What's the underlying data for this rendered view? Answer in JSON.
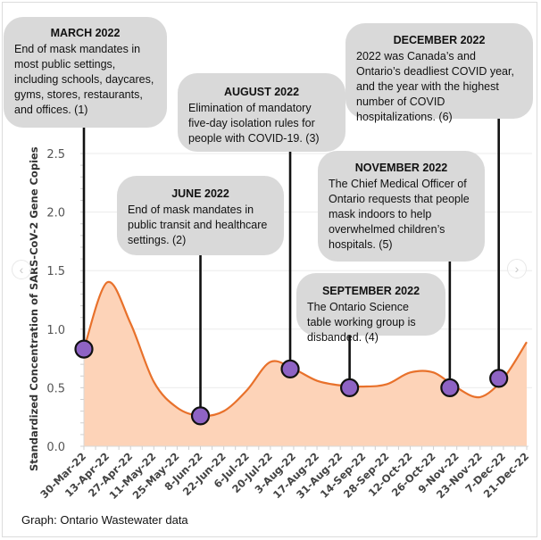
{
  "chart_data": {
    "type": "area",
    "title": "",
    "xlabel": "",
    "ylabel": "Standardized Concentration of SARS-CoV-2 Gene Copies",
    "ylim": [
      0,
      2.5
    ],
    "yticks": [
      "0.0",
      "0.5",
      "1.0",
      "1.5",
      "2.0",
      "2.5"
    ],
    "ytick_values": [
      0,
      0.5,
      1.0,
      1.5,
      2.0,
      2.5
    ],
    "grid": true,
    "categories": [
      "30-Mar-22",
      "13-Apr-22",
      "27-Apr-22",
      "11-May-22",
      "25-May-22",
      "8-Jun-22",
      "22-Jun-22",
      "6-Jul-22",
      "20-Jul-22",
      "3-Aug-22",
      "17-Aug-22",
      "31-Aug-22",
      "14-Sep-22",
      "28-Sep-22",
      "12-Oct-22",
      "26-Oct-22",
      "9-Nov-22",
      "23-Nov-22",
      "7-Dec-22",
      "21-Dec-22"
    ],
    "series": [
      {
        "name": "Standardized Concentration",
        "values": [
          0.83,
          1.4,
          1.05,
          0.55,
          0.33,
          0.26,
          0.3,
          0.48,
          0.72,
          0.66,
          0.56,
          0.52,
          0.51,
          0.53,
          0.63,
          0.63,
          0.5,
          0.42,
          0.58,
          0.89
        ]
      }
    ],
    "line_color": "#e8712b",
    "fill_color": "#fdd3b8",
    "marker_color": "#8e63c4",
    "events": [
      {
        "id": "march",
        "date_index": 0,
        "value": 0.83,
        "title": "MARCH 2022",
        "text": "End of mask mandates in most public settings, including schools, daycares, gyms, stores, restaurants, and offices. (1)"
      },
      {
        "id": "june",
        "date_index": 5,
        "value": 0.26,
        "title": "JUNE 2022",
        "text": "End of mask mandates in public transit and healthcare settings. (2)"
      },
      {
        "id": "august",
        "date_index": 8.85,
        "value": 0.66,
        "title": "AUGUST 2022",
        "text": "Elimination of mandatory five-day isolation rules for people with COVID-19. (3)"
      },
      {
        "id": "september",
        "date_index": 11.4,
        "value": 0.5,
        "title": "SEPTEMBER 2022",
        "text": "The Ontario Science table working group is disbanded. (4)"
      },
      {
        "id": "november",
        "date_index": 15.7,
        "value": 0.5,
        "title": "NOVEMBER 2022",
        "text": "The Chief Medical Officer of Ontario requests that people mask indoors to help overwhelmed children’s hospitals. (5)"
      },
      {
        "id": "december",
        "date_index": 17.8,
        "value": 0.58,
        "title": "DECEMBER 2022",
        "text": "2022 was Canada’s and Ontario’s deadliest COVID year, and the year with the highest number of COVID hospitalizations. (6)"
      }
    ]
  },
  "caption": "Graph: Ontario Wastewater data",
  "nav": {
    "prev_icon": "chevron-left-icon",
    "next_icon": "chevron-right-icon",
    "prev_glyph": "‹",
    "next_glyph": "›"
  }
}
